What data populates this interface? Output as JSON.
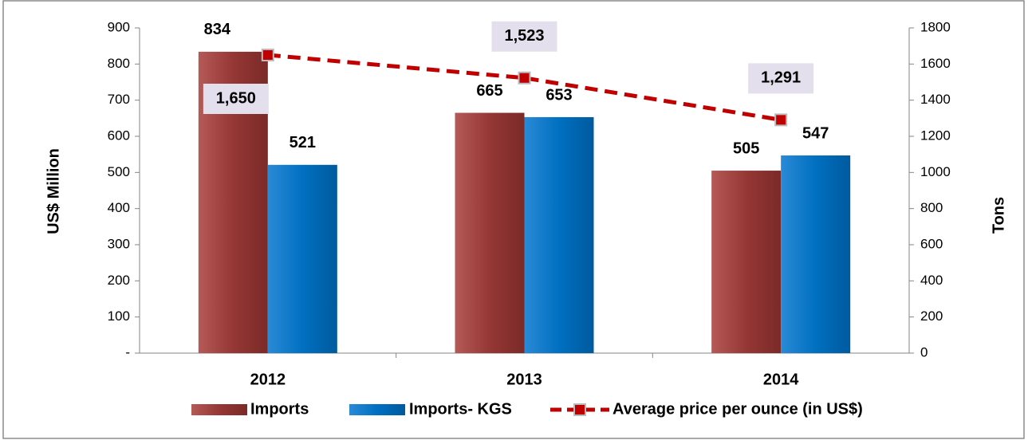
{
  "chart_data": {
    "type": "bar",
    "categories": [
      "2012",
      "2013",
      "2014"
    ],
    "series": [
      {
        "name": "Imports",
        "type": "bar",
        "color": "#953735",
        "values": [
          834,
          665,
          505
        ]
      },
      {
        "name": "Imports- KGS",
        "type": "bar",
        "color": "#0070c0",
        "values": [
          521,
          653,
          547
        ]
      },
      {
        "name": "Average price per ounce (in US$)",
        "type": "line",
        "axis": "y2",
        "color": "#c00000",
        "values": [
          1650,
          1523,
          1291
        ],
        "value_labels": [
          "1,650",
          "1,523",
          "1,291"
        ]
      }
    ],
    "ylabel": "US$ Million",
    "y2label": "Tons",
    "ylim": [
      0,
      900
    ],
    "yticks": [
      {
        "value": 0,
        "label": "-"
      },
      100,
      200,
      300,
      400,
      500,
      600,
      700,
      800,
      900
    ],
    "y2lim": [
      0,
      1800
    ],
    "y2ticks": [
      0,
      200,
      400,
      600,
      800,
      1000,
      1200,
      1400,
      1600,
      1800
    ],
    "legend": "bottom"
  }
}
